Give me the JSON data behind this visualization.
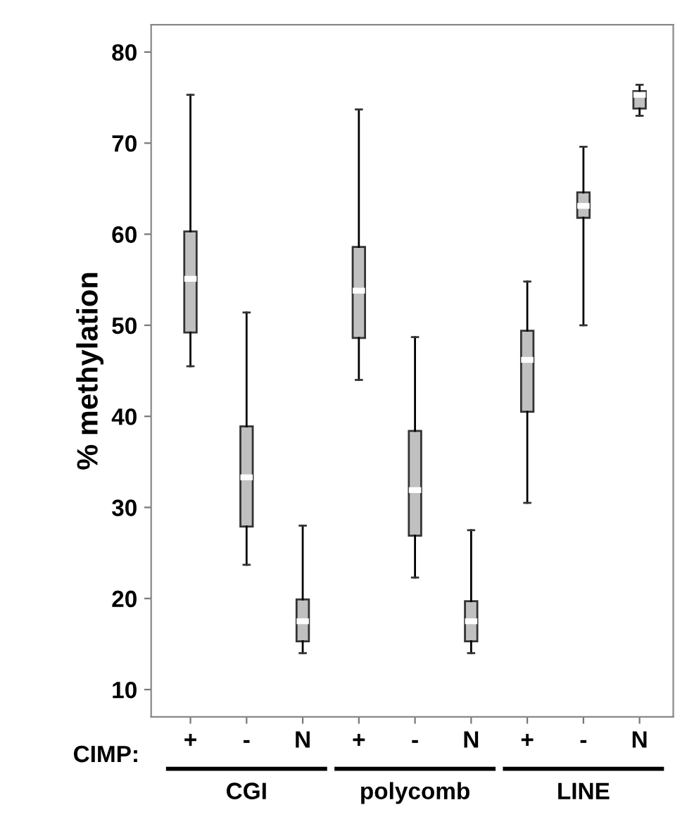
{
  "chart_data": {
    "type": "box",
    "ylabel": "% methylation",
    "categories": [
      "+",
      "-",
      "N",
      "+",
      "-",
      "N",
      "+",
      "-",
      "N"
    ],
    "boxes": [
      {
        "low": 45.5,
        "q1": 49.2,
        "median": 55.1,
        "q3": 60.3,
        "high": 75.3
      },
      {
        "low": 23.7,
        "q1": 27.9,
        "median": 33.3,
        "q3": 38.9,
        "high": 51.4
      },
      {
        "low": 14.0,
        "q1": 15.3,
        "median": 17.5,
        "q3": 19.9,
        "high": 28.0
      },
      {
        "low": 44.0,
        "q1": 48.6,
        "median": 53.8,
        "q3": 58.6,
        "high": 73.7
      },
      {
        "low": 22.3,
        "q1": 26.9,
        "median": 31.9,
        "q3": 38.4,
        "high": 48.7
      },
      {
        "low": 14.0,
        "q1": 15.3,
        "median": 17.5,
        "q3": 19.7,
        "high": 27.5
      },
      {
        "low": 30.5,
        "q1": 40.5,
        "median": 46.2,
        "q3": 49.4,
        "high": 54.8
      },
      {
        "low": 50.0,
        "q1": 61.8,
        "median": 63.1,
        "q3": 64.6,
        "high": 69.6
      },
      {
        "low": 73.0,
        "q1": 73.8,
        "median": 75.3,
        "q3": 75.7,
        "high": 76.4
      }
    ],
    "color": "#c0c0c0",
    "ylim": [
      7,
      83
    ],
    "yticks": [
      10,
      20,
      30,
      40,
      50,
      60,
      70,
      80
    ],
    "grid": false,
    "legend": false,
    "annotations": [
      "CIMP:",
      "CGI",
      "polycomb",
      "LINE"
    ]
  }
}
